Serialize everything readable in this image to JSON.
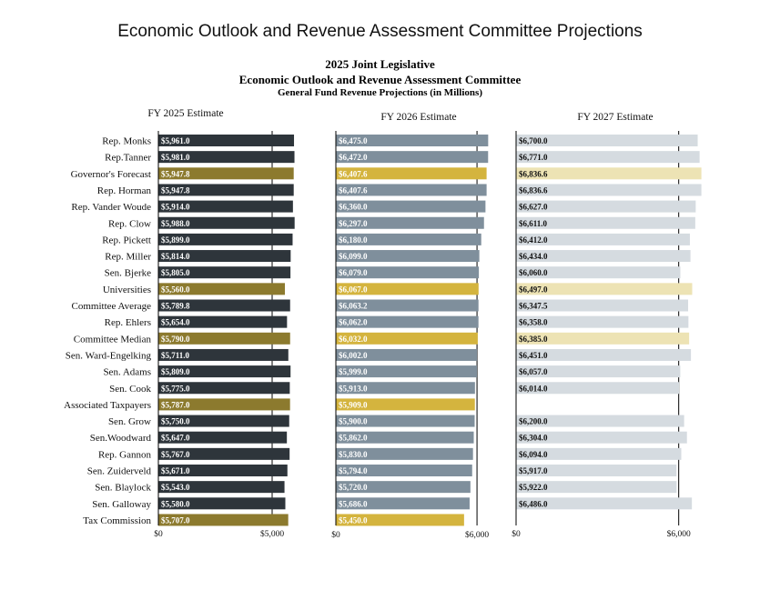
{
  "page": {
    "title": "Economic Outlook and Revenue Assessment Committee Projections",
    "subtitle_line1": "2025 Joint Legislative",
    "subtitle_line2": "Economic Outlook and Revenue Assessment Committee",
    "subtitle_line3": "General Fund Revenue Projections (in Millions)"
  },
  "colors": {
    "fy2025_default": "#2e353b",
    "fy2025_highlight": "#8c7a2e",
    "fy2026_default": "#7f8f9c",
    "fy2026_highlight": "#d4b43e",
    "fy2027_default": "#d5dbe0",
    "fy2027_highlight": "#ede3b4",
    "label_light": "#ffffff",
    "label_dark": "#111111"
  },
  "chart_data": {
    "type": "bar",
    "orientation": "horizontal",
    "categories": [
      "Rep. Monks",
      "Rep.Tanner",
      "Governor's Forecast",
      "Rep. Horman",
      "Rep. Vander Woude",
      "Rep. Clow",
      "Rep. Pickett",
      "Rep. Miller",
      "Sen. Bjerke",
      "Universities",
      "Committee Average",
      "Rep. Ehlers",
      "Committee Median",
      "Sen. Ward-Engelking",
      "Sen. Adams",
      "Sen. Cook",
      "Associated Taxpayers",
      "Sen. Grow",
      "Sen.Woodward",
      "Rep. Gannon",
      "Sen. Zuiderveld",
      "Sen. Blaylock",
      "Sen. Galloway",
      "Tax Commission"
    ],
    "highlighted": [
      "Governor's Forecast",
      "Universities",
      "Committee Median",
      "Associated Taxpayers",
      "Tax Commission"
    ],
    "series": [
      {
        "name": "FY 2025 Estimate",
        "values": [
          5961.0,
          5981.0,
          5947.8,
          5947.8,
          5914.0,
          5988.0,
          5899.0,
          5814.0,
          5805.0,
          5560.0,
          5789.8,
          5654.0,
          5790.0,
          5711.0,
          5809.0,
          5775.0,
          5787.0,
          5750.0,
          5647.0,
          5767.0,
          5671.0,
          5543.0,
          5580.0,
          5707.0
        ],
        "labels": [
          "$5,961.0",
          "$5,981.0",
          "$5,947.8",
          "$5,947.8",
          "$5,914.0",
          "$5,988.0",
          "$5,899.0",
          "$5,814.0",
          "$5,805.0",
          "$5,560.0",
          "$5,789.8",
          "$5,654.0",
          "$5,790.0",
          "$5,711.0",
          "$5,809.0",
          "$5,775.0",
          "$5,787.0",
          "$5,750.0",
          "$5,647.0",
          "$5,767.0",
          "$5,671.0",
          "$5,543.0",
          "$5,580.0",
          "$5,707.0"
        ],
        "xlim": [
          0,
          6000
        ],
        "xticks": [
          {
            "value": 0,
            "label": "$0"
          },
          {
            "value": 5000,
            "label": "$5,000"
          }
        ]
      },
      {
        "name": "FY 2026 Estimate",
        "values": [
          6475.0,
          6472.0,
          6407.6,
          6407.6,
          6360.0,
          6297.0,
          6180.0,
          6099.0,
          6079.0,
          6067.0,
          6063.2,
          6062.0,
          6032.0,
          6002.0,
          5999.0,
          5913.0,
          5909.0,
          5900.0,
          5862.0,
          5830.0,
          5794.0,
          5720.0,
          5686.0,
          5450.0
        ],
        "labels": [
          "$6,475.0",
          "$6,472.0",
          "$6,407.6",
          "$6,407.6",
          "$6,360.0",
          "$6,297.0",
          "$6,180.0",
          "$6,099.0",
          "$6,079.0",
          "$6,067.0",
          "$6,063.2",
          "$6,062.0",
          "$6,032.0",
          "$6,002.0",
          "$5,999.0",
          "$5,913.0",
          "$5,909.0",
          "$5,900.0",
          "$5,862.0",
          "$5,830.0",
          "$5,794.0",
          "$5,720.0",
          "$5,686.0",
          "$5,450.0"
        ],
        "xlim": [
          0,
          6500
        ],
        "xticks": [
          {
            "value": 0,
            "label": "$0"
          },
          {
            "value": 6000,
            "label": "$6,000"
          }
        ]
      },
      {
        "name": "FY 2027 Estimate",
        "values": [
          6700.0,
          6771.0,
          6836.6,
          6836.6,
          6627.0,
          6611.0,
          6412.0,
          6434.0,
          6060.0,
          6497.0,
          6347.5,
          6358.0,
          6385.0,
          6451.0,
          6057.0,
          6014.0,
          null,
          6200.0,
          6304.0,
          6094.0,
          5917.0,
          5922.0,
          6486.0,
          null
        ],
        "labels": [
          "$6,700.0",
          "$6,771.0",
          "$6,836.6",
          "$6,836.6",
          "$6,627.0",
          "$6,611.0",
          "$6,412.0",
          "$6,434.0",
          "$6,060.0",
          "$6,497.0",
          "$6,347.5",
          "$6,358.0",
          "$6,385.0",
          "$6,451.0",
          "$6,057.0",
          "$6,014.0",
          "",
          "$6,200.0",
          "$6,304.0",
          "$6,094.0",
          "$5,917.0",
          "$5,922.0",
          "$6,486.0",
          ""
        ],
        "xlim": [
          0,
          6850
        ],
        "xticks": [
          {
            "value": 0,
            "label": "$0"
          },
          {
            "value": 6000,
            "label": "$6,000"
          }
        ]
      }
    ],
    "gridlines": "reference line at $5,000 / $6,000"
  }
}
